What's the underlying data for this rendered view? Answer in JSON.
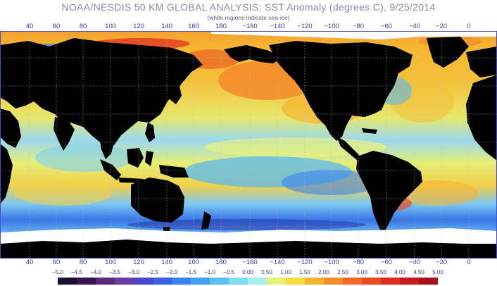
{
  "title": "NOAA/NESDIS 50 KM GLOBAL ANALYSIS: SST Anomaly (degrees C), 9/25/2014",
  "subtitle": "(white regions indicate sea-ice)",
  "longitude_labels": [
    "40",
    "60",
    "80",
    "100",
    "120",
    "140",
    "160",
    "180",
    "−160",
    "−140",
    "−120",
    "−100",
    "−80",
    "−60",
    "−40",
    "−20",
    "0"
  ],
  "scale": {
    "labels": [
      "−5.0",
      "−4.5",
      "−4.0",
      "−3.5",
      "−3.0",
      "−2.5",
      "−2.0",
      "−1.5",
      "−1.0",
      "−0.5",
      "0.00",
      "0.50",
      "1.00",
      "1.50",
      "2.00",
      "2.50",
      "3.00",
      "3.50",
      "4.00",
      "4.50",
      "5.00"
    ],
    "colors": [
      "#1a1030",
      "#3a1450",
      "#5a2a78",
      "#6a3ca0",
      "#4a46c8",
      "#3a60e0",
      "#3a82ee",
      "#42a2f4",
      "#58c2f4",
      "#80dcf0",
      "#aaeef0",
      "#e8f27a",
      "#f4dc3c",
      "#f6b430",
      "#f48e2c",
      "#ee6a26",
      "#e84a22",
      "#e02a20",
      "#c81a1e",
      "#a8101c"
    ]
  },
  "colors": {
    "land": "#000000",
    "sea_ice": "#ffffff",
    "grid": "#b8bcc8",
    "frame": "#4a4ad8"
  }
}
